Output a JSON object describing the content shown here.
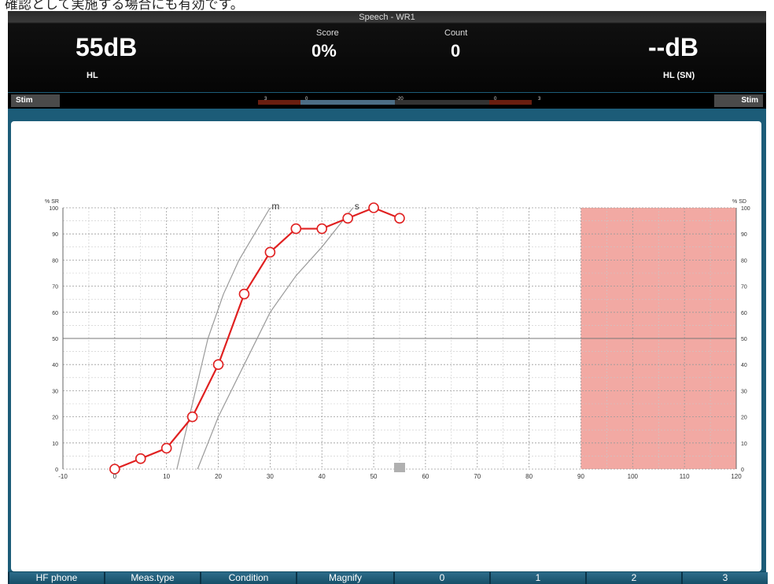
{
  "caption": {
    "text": "確認として実施する場合にも有効です。"
  },
  "header": {
    "title": "Speech - WR1",
    "left_level": "55dB",
    "left_unit": "HL",
    "score_label": "Score",
    "score_value": "0%",
    "count_label": "Count",
    "count_value": "0",
    "right_level": "--dB",
    "right_unit": "HL (SN)",
    "stim_left_label": "Stim",
    "stim_right_label": "Stim"
  },
  "meter": {
    "labels": [
      "3",
      "0",
      "-20",
      "0",
      "3"
    ]
  },
  "chart_data": {
    "type": "line",
    "left_axis_label": "% SR",
    "right_axis_label": "% SD",
    "xlim": [
      -10,
      120
    ],
    "ylim": [
      0,
      100
    ],
    "x_ticks": [
      -10,
      0,
      10,
      20,
      30,
      40,
      50,
      60,
      70,
      80,
      90,
      100,
      110,
      120
    ],
    "y_ticks_left": [
      0,
      10,
      20,
      30,
      40,
      50,
      60,
      70,
      80,
      90,
      100
    ],
    "y_ticks_right": [
      100,
      90,
      80,
      70,
      60,
      50,
      40,
      30,
      20,
      10,
      0
    ],
    "series": [
      {
        "color": "#e02020",
        "x": [
          0,
          5,
          10,
          15,
          20,
          25,
          30,
          35,
          40,
          45,
          50,
          55
        ],
        "y": [
          0,
          4,
          8,
          20,
          40,
          67,
          83,
          92,
          92,
          96,
          100,
          96
        ]
      }
    ],
    "reference_curves": [
      {
        "label": "m",
        "x": [
          12,
          15,
          18,
          21,
          24,
          27,
          30
        ],
        "y": [
          0,
          25,
          50,
          67,
          80,
          90,
          100
        ]
      },
      {
        "label": "s",
        "x": [
          16,
          20,
          25,
          30,
          35,
          40,
          46
        ],
        "y": [
          0,
          20,
          40,
          60,
          74,
          85,
          100
        ]
      }
    ],
    "shaded_region": {
      "x_from": 90,
      "x_to": 120,
      "color": "#f2a9a3"
    },
    "marker": {
      "x": 55,
      "y": 0,
      "color": "#b0b0b0"
    },
    "grid": true
  },
  "bottom_buttons": [
    "HF phone",
    "Meas.type",
    "Condition",
    "Magnify",
    "0",
    "1",
    "2",
    "3"
  ]
}
